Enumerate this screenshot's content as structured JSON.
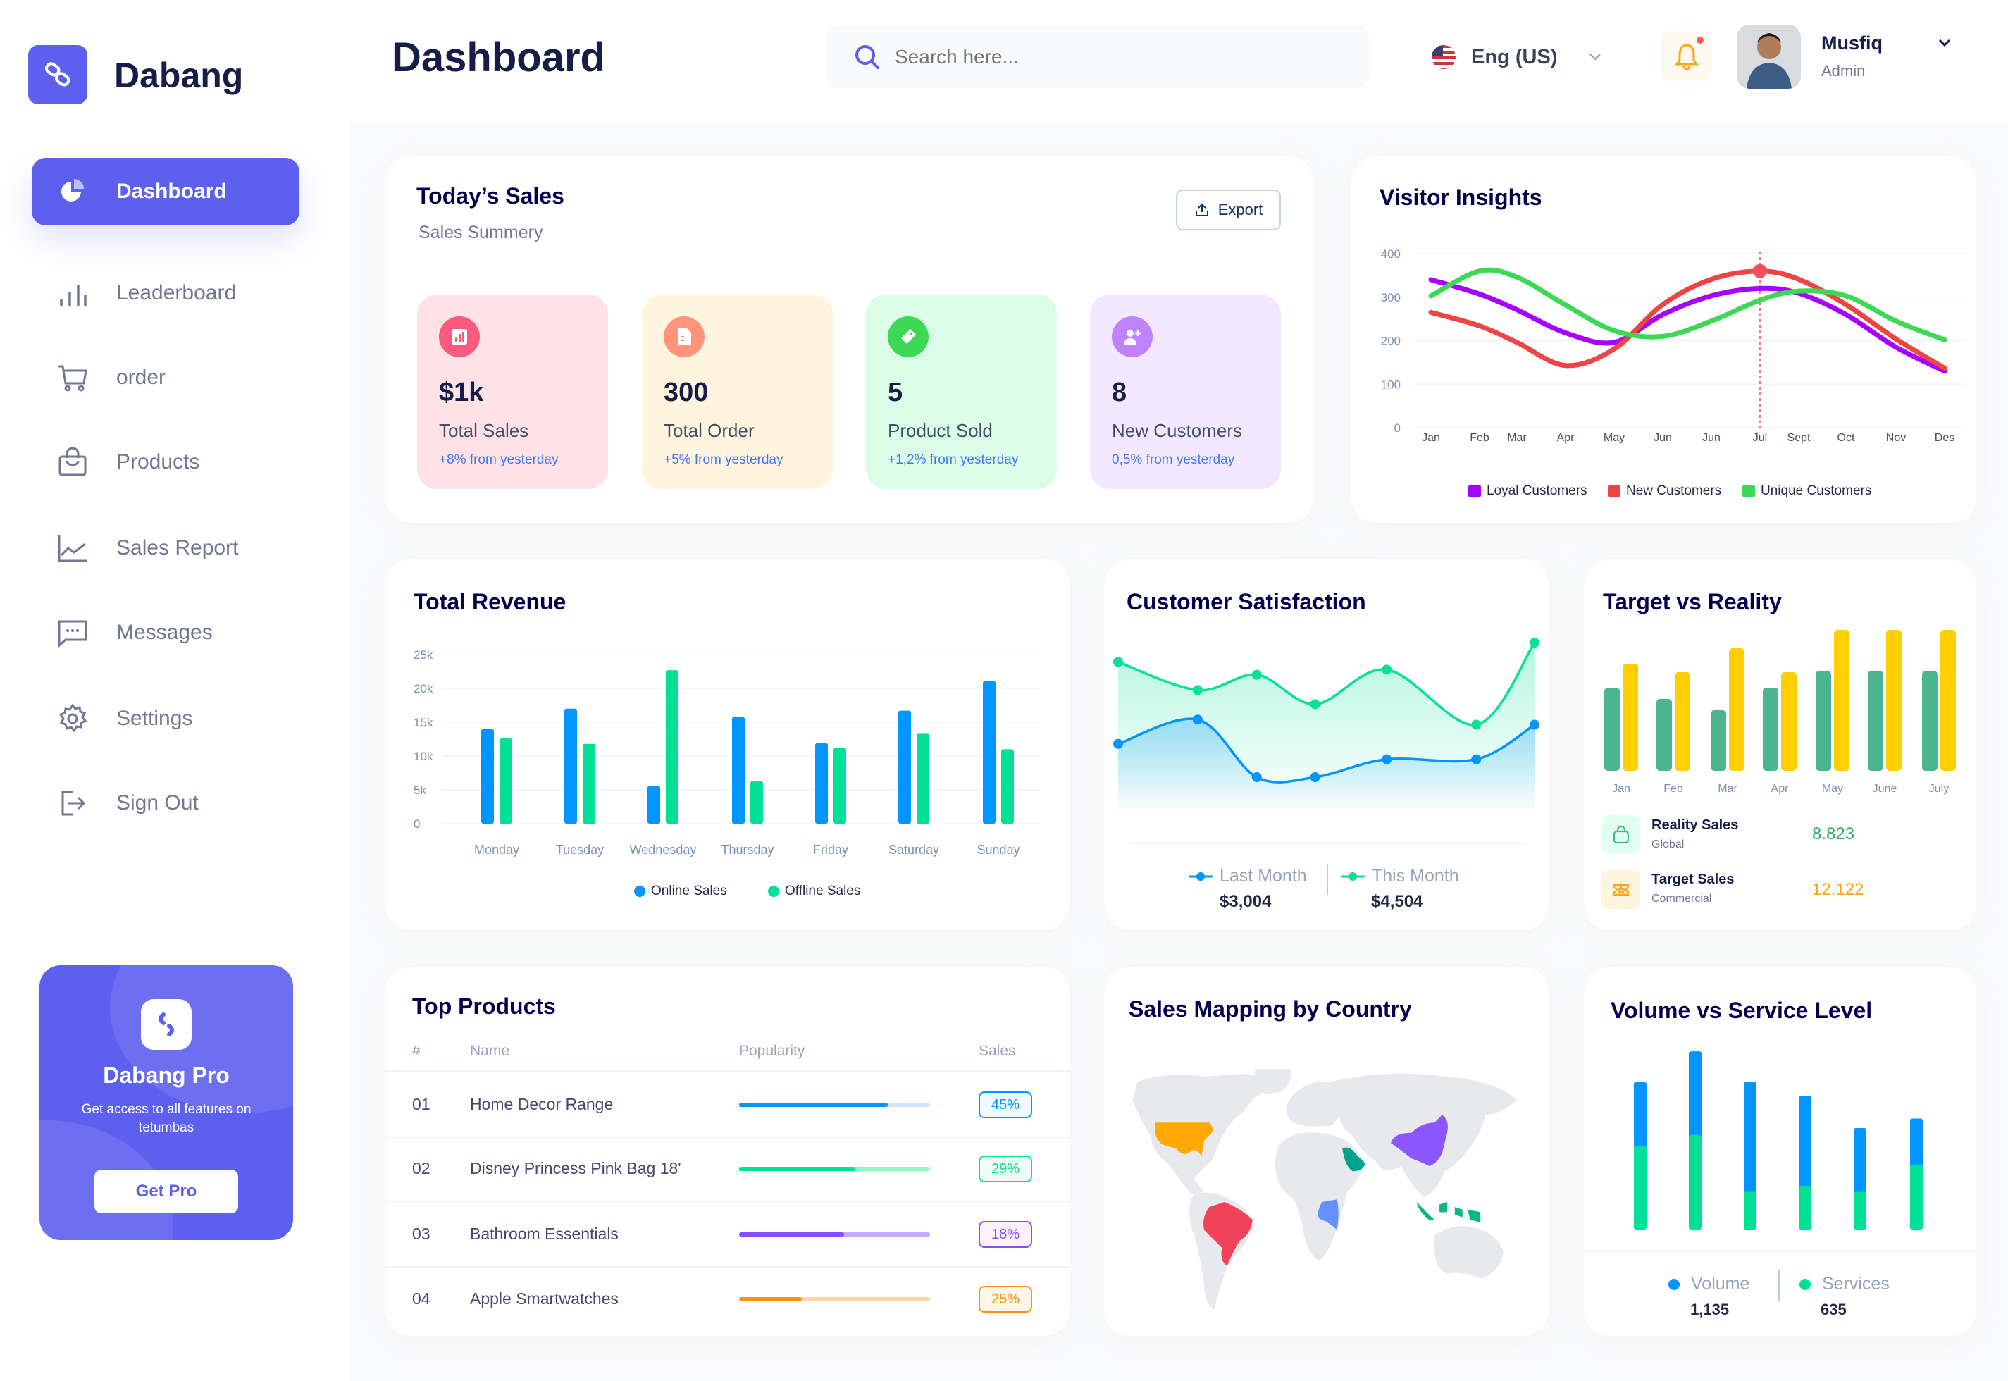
{
  "app": {
    "name": "Dabang"
  },
  "sidebar": {
    "items": [
      {
        "label": "Dashboard",
        "icon": "pie-chart-icon",
        "active": true
      },
      {
        "label": "Leaderboard",
        "icon": "bar-chart-icon"
      },
      {
        "label": "order",
        "icon": "cart-icon"
      },
      {
        "label": "Products",
        "icon": "shopping-bag-icon"
      },
      {
        "label": "Sales Report",
        "icon": "line-chart-icon"
      },
      {
        "label": "Messages",
        "icon": "message-icon"
      },
      {
        "label": "Settings",
        "icon": "gear-icon"
      },
      {
        "label": "Sign Out",
        "icon": "sign-out-icon"
      }
    ]
  },
  "promo": {
    "title": "Dabang Pro",
    "text": "Get access to all features on tetumbas",
    "button": "Get Pro"
  },
  "header": {
    "title": "Dashboard",
    "search_placeholder": "Search here...",
    "language": "Eng (US)",
    "user": {
      "name": "Musfiq",
      "role": "Admin"
    },
    "notification_dot": true
  },
  "todays_sales": {
    "title": "Today’s Sales",
    "subtitle": "Sales Summery",
    "export_label": "Export",
    "stats": [
      {
        "value": "$1k",
        "label": "Total Sales",
        "change": "+8% from yesterday",
        "bg": "#FFE2E5",
        "icon_bg": "#FA5A7D",
        "icon": "bar-chart-icon"
      },
      {
        "value": "300",
        "label": "Total Order",
        "change": "+5% from yesterday",
        "bg": "#FFF4DE",
        "icon_bg": "#FF947A",
        "icon": "document-icon"
      },
      {
        "value": "5",
        "label": "Product Sold",
        "change": "+1,2% from yesterday",
        "bg": "#DCFCE7",
        "icon_bg": "#3CD856",
        "icon": "tag-icon"
      },
      {
        "value": "8",
        "label": "New Customers",
        "change": "0,5% from yesterday",
        "bg": "#F3E8FF",
        "icon_bg": "#BF83FF",
        "icon": "add-user-icon"
      }
    ]
  },
  "chart_data": [
    {
      "title": "Visitor Insights",
      "type": "line",
      "categories": [
        "Jan",
        "Feb",
        "Mar",
        "Apr",
        "May",
        "Jun",
        "Jun",
        "Jul",
        "Sept",
        "Oct",
        "Nov",
        "Des"
      ],
      "yticks": [
        "0",
        "100",
        "200",
        "300",
        "400"
      ],
      "ylim": [
        0,
        400
      ],
      "grid": true,
      "legend": "bottom",
      "highlight": {
        "series": 1,
        "index": 7
      },
      "series": [
        {
          "name": "Loyal Customers",
          "color": "#A700FF",
          "values": [
            340,
            307,
            271,
            218,
            196,
            260,
            303,
            320,
            309,
            260,
            185,
            130
          ]
        },
        {
          "name": "New Customers",
          "color": "#EF4444",
          "values": [
            265,
            234,
            196,
            143,
            181,
            283,
            341,
            360,
            341,
            283,
            204,
            137
          ]
        },
        {
          "name": "Unique Customers",
          "color": "#3CD856",
          "values": [
            303,
            360,
            346,
            282,
            223,
            210,
            245,
            293,
            314,
            303,
            245,
            202
          ]
        }
      ]
    },
    {
      "title": "Total Revenue",
      "type": "bar",
      "categories": [
        "Monday",
        "Tuesday",
        "Wednesday",
        "Thursday",
        "Friday",
        "Saturday",
        "Sunday"
      ],
      "yticks": [
        "0",
        "5k",
        "10k",
        "15k",
        "20k",
        "25k"
      ],
      "ylim": [
        0,
        25000
      ],
      "grid": true,
      "legend": "bottom",
      "series": [
        {
          "name": "Online Sales",
          "color": "#0095FF",
          "values": [
            14000,
            17000,
            5600,
            15800,
            11900,
            16700,
            21100
          ]
        },
        {
          "name": "Offline Sales",
          "color": "#00E096",
          "values": [
            12600,
            11800,
            22700,
            6300,
            11200,
            13300,
            11000
          ]
        }
      ]
    },
    {
      "title": "Customer Satisfaction",
      "type": "area",
      "legend": "bottom",
      "series": [
        {
          "name": "Last Month",
          "color": "#0095FF",
          "total": "$3,004",
          "values": [
            54,
            73,
            28,
            28,
            42,
            42,
            69
          ]
        },
        {
          "name": "This Month",
          "color": "#07E098",
          "total": "$4,504",
          "values": [
            118,
            96,
            108,
            85,
            112,
            69,
            133
          ]
        }
      ]
    },
    {
      "title": "Target vs Reality",
      "type": "bar",
      "categories": [
        "Jan",
        "Feb",
        "Mar",
        "Apr",
        "May",
        "June",
        "July"
      ],
      "series": [
        {
          "name": "Reality Sales",
          "color": "#4AB58E",
          "values": [
            59,
            51,
            43,
            59,
            71,
            71,
            71
          ]
        },
        {
          "name": "Target Sales",
          "color": "#FFCF00",
          "values": [
            76,
            70,
            87,
            70,
            100,
            100,
            100
          ]
        }
      ],
      "summary": [
        {
          "label": "Reality Sales",
          "sub": "Global",
          "value": "8.823",
          "color": "#27AE60",
          "bg": "#E2FFF3",
          "icon": "shopping-bag-icon"
        },
        {
          "label": "Target Sales",
          "sub": "Commercial",
          "value": "12.122",
          "color": "#FFA412",
          "bg": "#FFF4DE",
          "icon": "ticket-icon"
        }
      ]
    },
    {
      "title": "Volume vs Service Level",
      "type": "bar",
      "stacked": true,
      "legend": "bottom",
      "series": [
        {
          "name": "Volume",
          "color": "#0095FF",
          "total": "1,135",
          "values": [
            54,
            71,
            93,
            76,
            54,
            39
          ]
        },
        {
          "name": "Services",
          "color": "#00E096",
          "total": "635",
          "values": [
            71,
            80,
            32,
            37,
            32,
            55
          ]
        }
      ]
    }
  ],
  "top_products": {
    "title": "Top Products",
    "columns": [
      "#",
      "Name",
      "Popularity",
      "Sales"
    ],
    "rows": [
      {
        "rank": "01",
        "name": "Home Decor Range",
        "popularity": 0.78,
        "sales": "45%",
        "color": "#0095FF",
        "track": "#CDE7FF",
        "badge_bg": "#F0F9FF"
      },
      {
        "rank": "02",
        "name": "Disney Princess Pink Bag 18'",
        "popularity": 0.61,
        "sales": "29%",
        "color": "#00E096",
        "track": "#8CFAC7",
        "badge_bg": "#F0FDF4"
      },
      {
        "rank": "03",
        "name": "Bathroom Essentials",
        "popularity": 0.55,
        "sales": "18%",
        "color": "#884DFF",
        "track": "#C5A8FF",
        "badge_bg": "#FBF1FF"
      },
      {
        "rank": "04",
        "name": "Apple Smartwatches",
        "popularity": 0.33,
        "sales": "25%",
        "color": "#FF8F0D",
        "track": "#FFD5A4",
        "badge_bg": "#FEF6E6"
      }
    ]
  },
  "sales_map": {
    "title": "Sales Mapping by Country",
    "land_color": "#E8E9EC",
    "highlight_colors": [
      "#FFA800",
      "#F0435A",
      "#8B56FF",
      "#00A389",
      "#6590FF",
      "#0BB783"
    ]
  }
}
